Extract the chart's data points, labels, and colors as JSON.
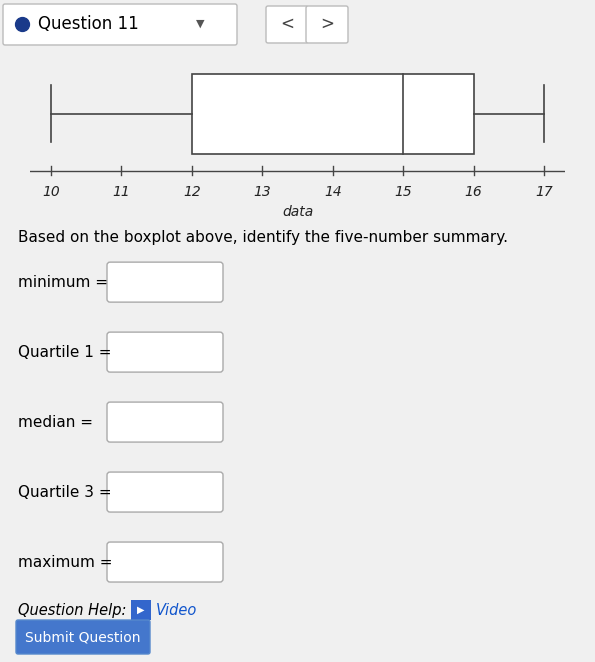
{
  "minimum": 10,
  "q1": 12,
  "median": 15,
  "q3": 16,
  "maximum": 17,
  "xmin": 10,
  "xmax": 17,
  "xticks": [
    10,
    11,
    12,
    13,
    14,
    15,
    16,
    17
  ],
  "xlabel": "data",
  "line_color": "#444444",
  "background_color": "#f0f0f0",
  "body_background": "#ffffff",
  "header_bg": "#f0f0f0",
  "title": "Question 11",
  "form_labels": [
    "minimum =",
    "Quartile 1 =",
    "median =",
    "Quartile 3 =",
    "maximum ="
  ],
  "button_text": "Submit Question",
  "dot_color": "#1a3a8a",
  "nav_color": "#555555"
}
